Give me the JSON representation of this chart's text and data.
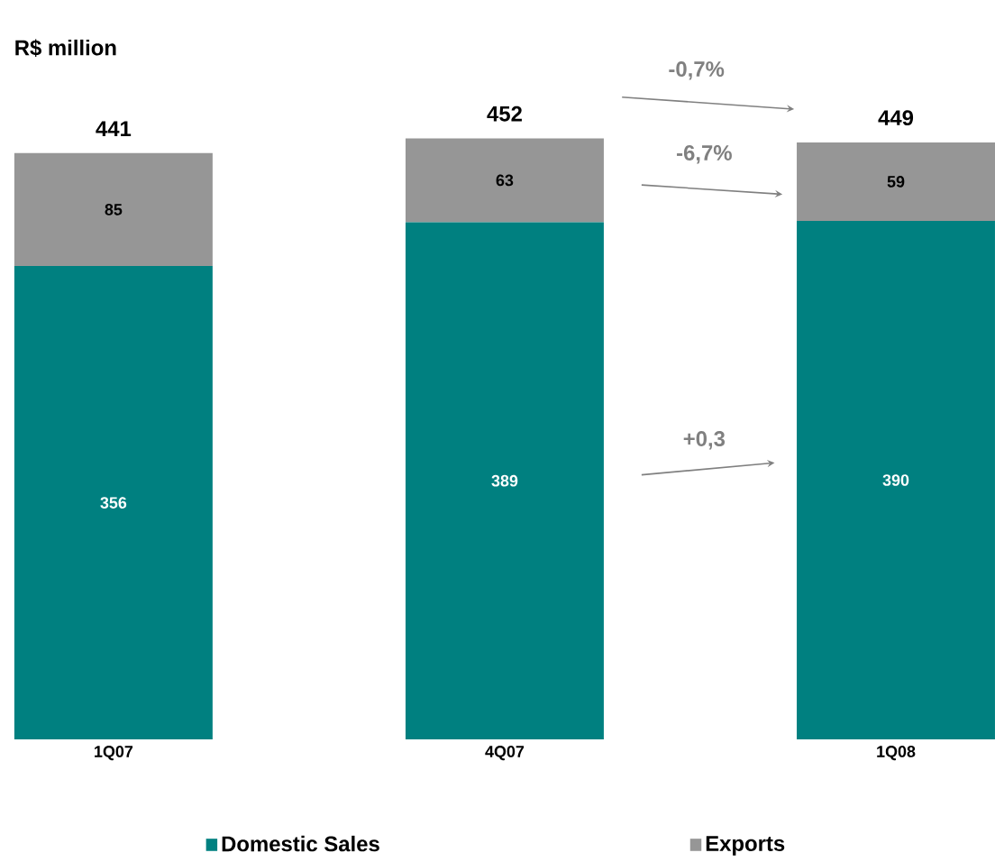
{
  "chart_data": {
    "type": "bar",
    "stacked": true,
    "title": "R$ million",
    "categories": [
      "1Q07",
      "4Q07",
      "1Q08"
    ],
    "series": [
      {
        "name": "Domestic Sales",
        "color": "#008080",
        "values": [
          356,
          389,
          390
        ]
      },
      {
        "name": "Exports",
        "color": "#969696",
        "values": [
          85,
          63,
          59
        ]
      }
    ],
    "data_labels": true,
    "totals": [
      "441",
      "452",
      "449"
    ],
    "legend": "bottom",
    "annotations": [
      "-0,7%",
      "-6,7%",
      "+0,3"
    ]
  }
}
